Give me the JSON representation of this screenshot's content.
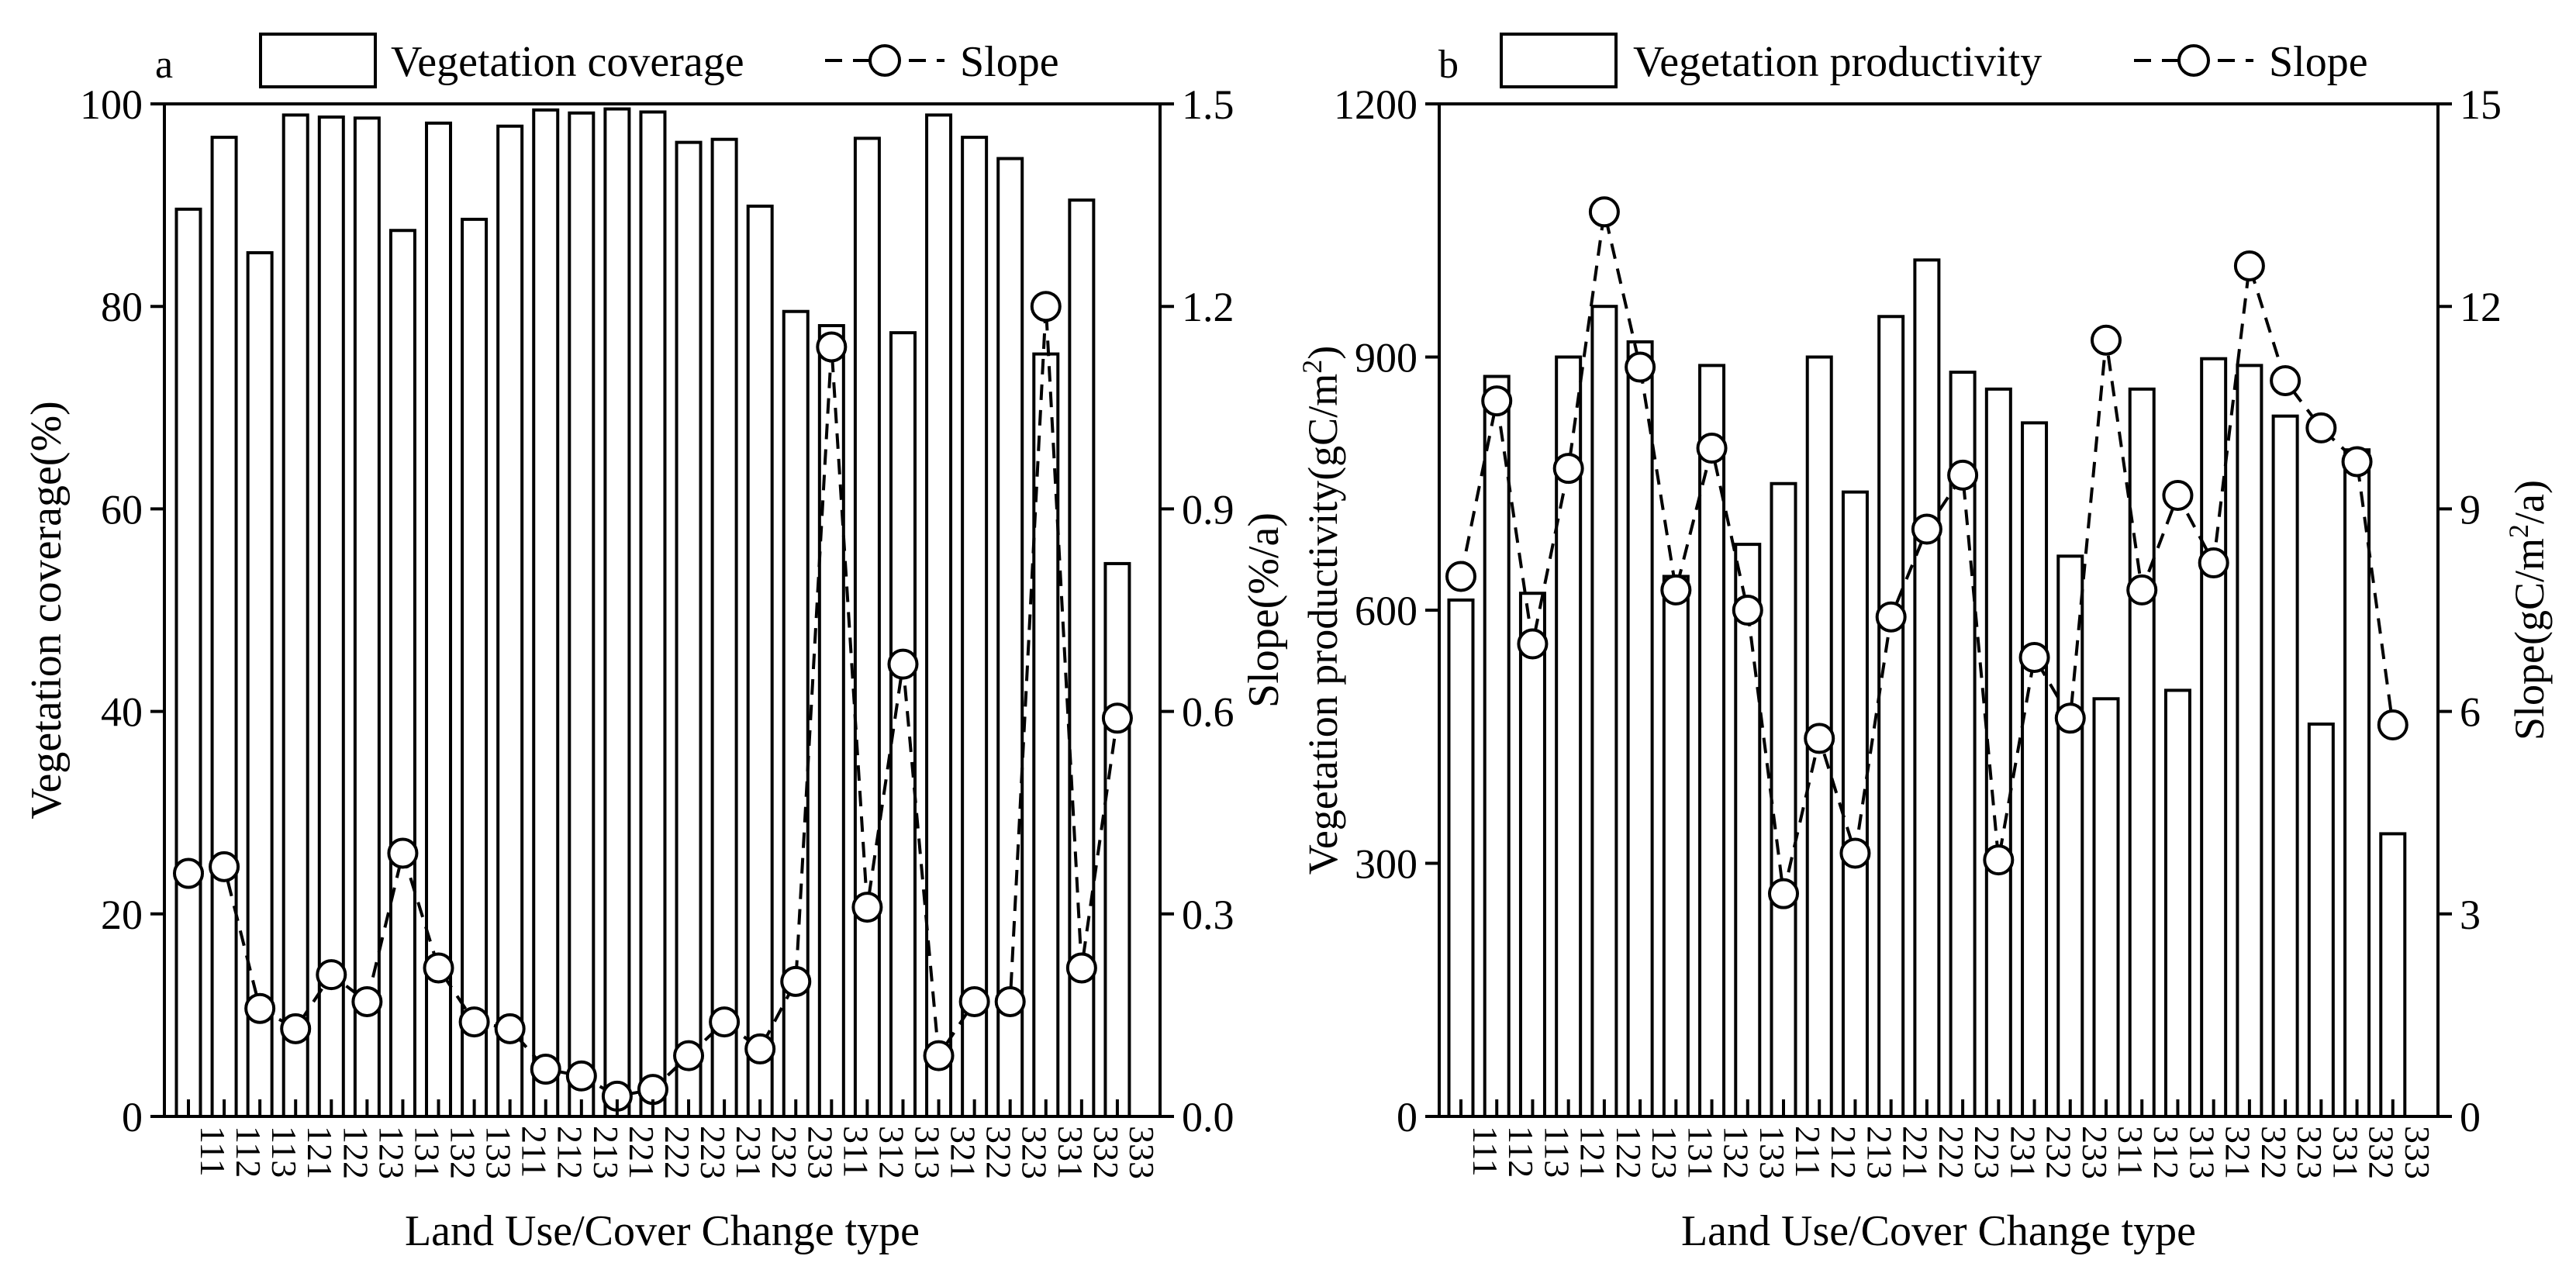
{
  "categories": [
    "111",
    "112",
    "113",
    "121",
    "122",
    "123",
    "131",
    "132",
    "133",
    "211",
    "212",
    "213",
    "221",
    "222",
    "223",
    "231",
    "232",
    "233",
    "311",
    "312",
    "313",
    "321",
    "322",
    "323",
    "331",
    "332",
    "333"
  ],
  "chart_data": [
    {
      "panel_label": "a",
      "type": "bar+line",
      "xlabel": "Land Use/Cover Change type",
      "bar_series": {
        "name": "Vegetation coverage",
        "ylabel": "Vegetation coverage(%)",
        "ylim": [
          0,
          100
        ],
        "ticks": [
          0,
          20,
          40,
          60,
          80,
          100
        ],
        "tick_labels": [
          "0",
          "20",
          "40",
          "60",
          "80",
          "100"
        ],
        "values": [
          89.6,
          96.7,
          85.3,
          98.9,
          98.7,
          98.6,
          87.5,
          98.1,
          88.6,
          97.8,
          99.4,
          99.1,
          99.5,
          99.2,
          96.2,
          96.5,
          89.9,
          79.5,
          78.1,
          96.6,
          77.4,
          98.9,
          96.7,
          94.6,
          75.3,
          90.5,
          54.6
        ]
      },
      "line_series": {
        "name": "Slope",
        "ylabel": "Slope(%/a)",
        "ylim": [
          0,
          1.5
        ],
        "ticks": [
          0,
          0.3,
          0.6,
          0.9,
          1.2,
          1.5
        ],
        "tick_labels": [
          "0.0",
          "0.3",
          "0.6",
          "0.9",
          "1.2",
          "1.5"
        ],
        "values": [
          0.36,
          0.37,
          0.16,
          0.13,
          0.21,
          0.17,
          0.39,
          0.22,
          0.14,
          0.13,
          0.07,
          0.06,
          0.03,
          0.04,
          0.09,
          0.14,
          0.1,
          0.2,
          1.14,
          0.31,
          0.67,
          0.09,
          0.17,
          0.17,
          1.2,
          0.22,
          0.59
        ]
      },
      "legend_position": "top"
    },
    {
      "panel_label": "b",
      "type": "bar+line",
      "xlabel": "Land Use/Cover Change type",
      "bar_series": {
        "name": "Vegetation productivity",
        "ylabel": "Vegetation productivity(gC/m2)",
        "ylim": [
          0,
          1200
        ],
        "ticks": [
          0,
          300,
          600,
          900,
          1200
        ],
        "tick_labels": [
          "0",
          "300",
          "600",
          "900",
          "1200"
        ],
        "values": [
          612,
          877,
          620,
          900,
          960,
          918,
          640,
          890,
          678,
          750,
          900,
          740,
          948,
          1015,
          882,
          862,
          822,
          664,
          495,
          862,
          505,
          898,
          890,
          830,
          465,
          790,
          335
        ]
      },
      "line_series": {
        "name": "Slope",
        "ylabel": "Slope(gC/m2/a)",
        "ylim": [
          0,
          15
        ],
        "ticks": [
          0,
          3,
          6,
          9,
          12,
          15
        ],
        "tick_labels": [
          "0",
          "3",
          "6",
          "9",
          "12",
          "15"
        ],
        "values": [
          8.0,
          10.6,
          7.0,
          9.6,
          13.4,
          11.1,
          7.8,
          9.9,
          7.5,
          3.3,
          5.6,
          3.9,
          7.4,
          8.7,
          9.5,
          3.8,
          6.8,
          5.9,
          11.5,
          7.8,
          9.2,
          8.2,
          12.6,
          10.9,
          10.2,
          9.7,
          5.8
        ]
      },
      "legend_position": "top"
    }
  ]
}
